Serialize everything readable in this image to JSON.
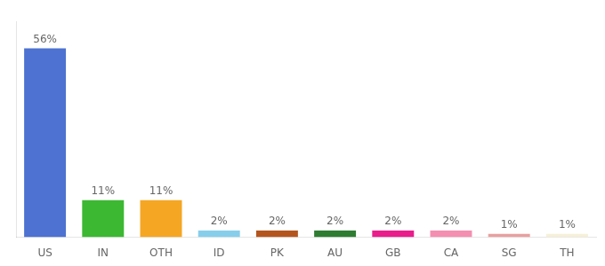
{
  "chart_data": {
    "type": "bar",
    "categories": [
      "US",
      "IN",
      "OTH",
      "ID",
      "PK",
      "AU",
      "GB",
      "CA",
      "SG",
      "TH"
    ],
    "values": [
      56,
      11,
      11,
      2,
      2,
      2,
      2,
      2,
      1,
      1
    ],
    "value_labels": [
      "56%",
      "11%",
      "11%",
      "2%",
      "2%",
      "2%",
      "2%",
      "2%",
      "1%",
      "1%"
    ],
    "colors": [
      "#4d72d1",
      "#3cb832",
      "#f5a623",
      "#87ceeb",
      "#b5551e",
      "#2e7d32",
      "#e91e8c",
      "#f48fb1",
      "#e8a0a0",
      "#f5f0d8"
    ],
    "ylim": [
      0,
      64
    ],
    "data_labels": true,
    "tick_labels": "x",
    "grid": false
  }
}
